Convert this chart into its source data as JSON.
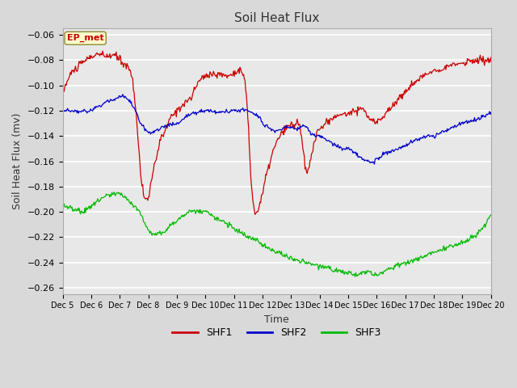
{
  "title": "Soil Heat Flux",
  "xlabel": "Time",
  "ylabel": "Soil Heat Flux (mv)",
  "ylim": [
    -0.265,
    -0.055
  ],
  "yticks": [
    -0.06,
    -0.08,
    -0.1,
    -0.12,
    -0.14,
    -0.16,
    -0.18,
    -0.2,
    -0.22,
    -0.24,
    -0.26
  ],
  "xtick_labels": [
    "Dec 5",
    "Dec 6",
    "Dec 7",
    "Dec 8",
    "Dec 9",
    "Dec 10",
    "Dec 11",
    "Dec 12",
    "Dec 13",
    "Dec 14",
    "Dec 15",
    "Dec 16",
    "Dec 17",
    "Dec 18",
    "Dec 19",
    "Dec 20"
  ],
  "annotation_text": "EP_met",
  "annotation_color": "#cc0000",
  "annotation_bg": "#ffffcc",
  "fig_bg": "#d9d9d9",
  "plot_bg": "#e8e8e8",
  "grid_color": "#ffffff",
  "colors": {
    "SHF1": "#cc0000",
    "SHF2": "#0000cc",
    "SHF3": "#00bb00"
  },
  "title_fontsize": 11,
  "label_fontsize": 9,
  "tick_fontsize": 8
}
